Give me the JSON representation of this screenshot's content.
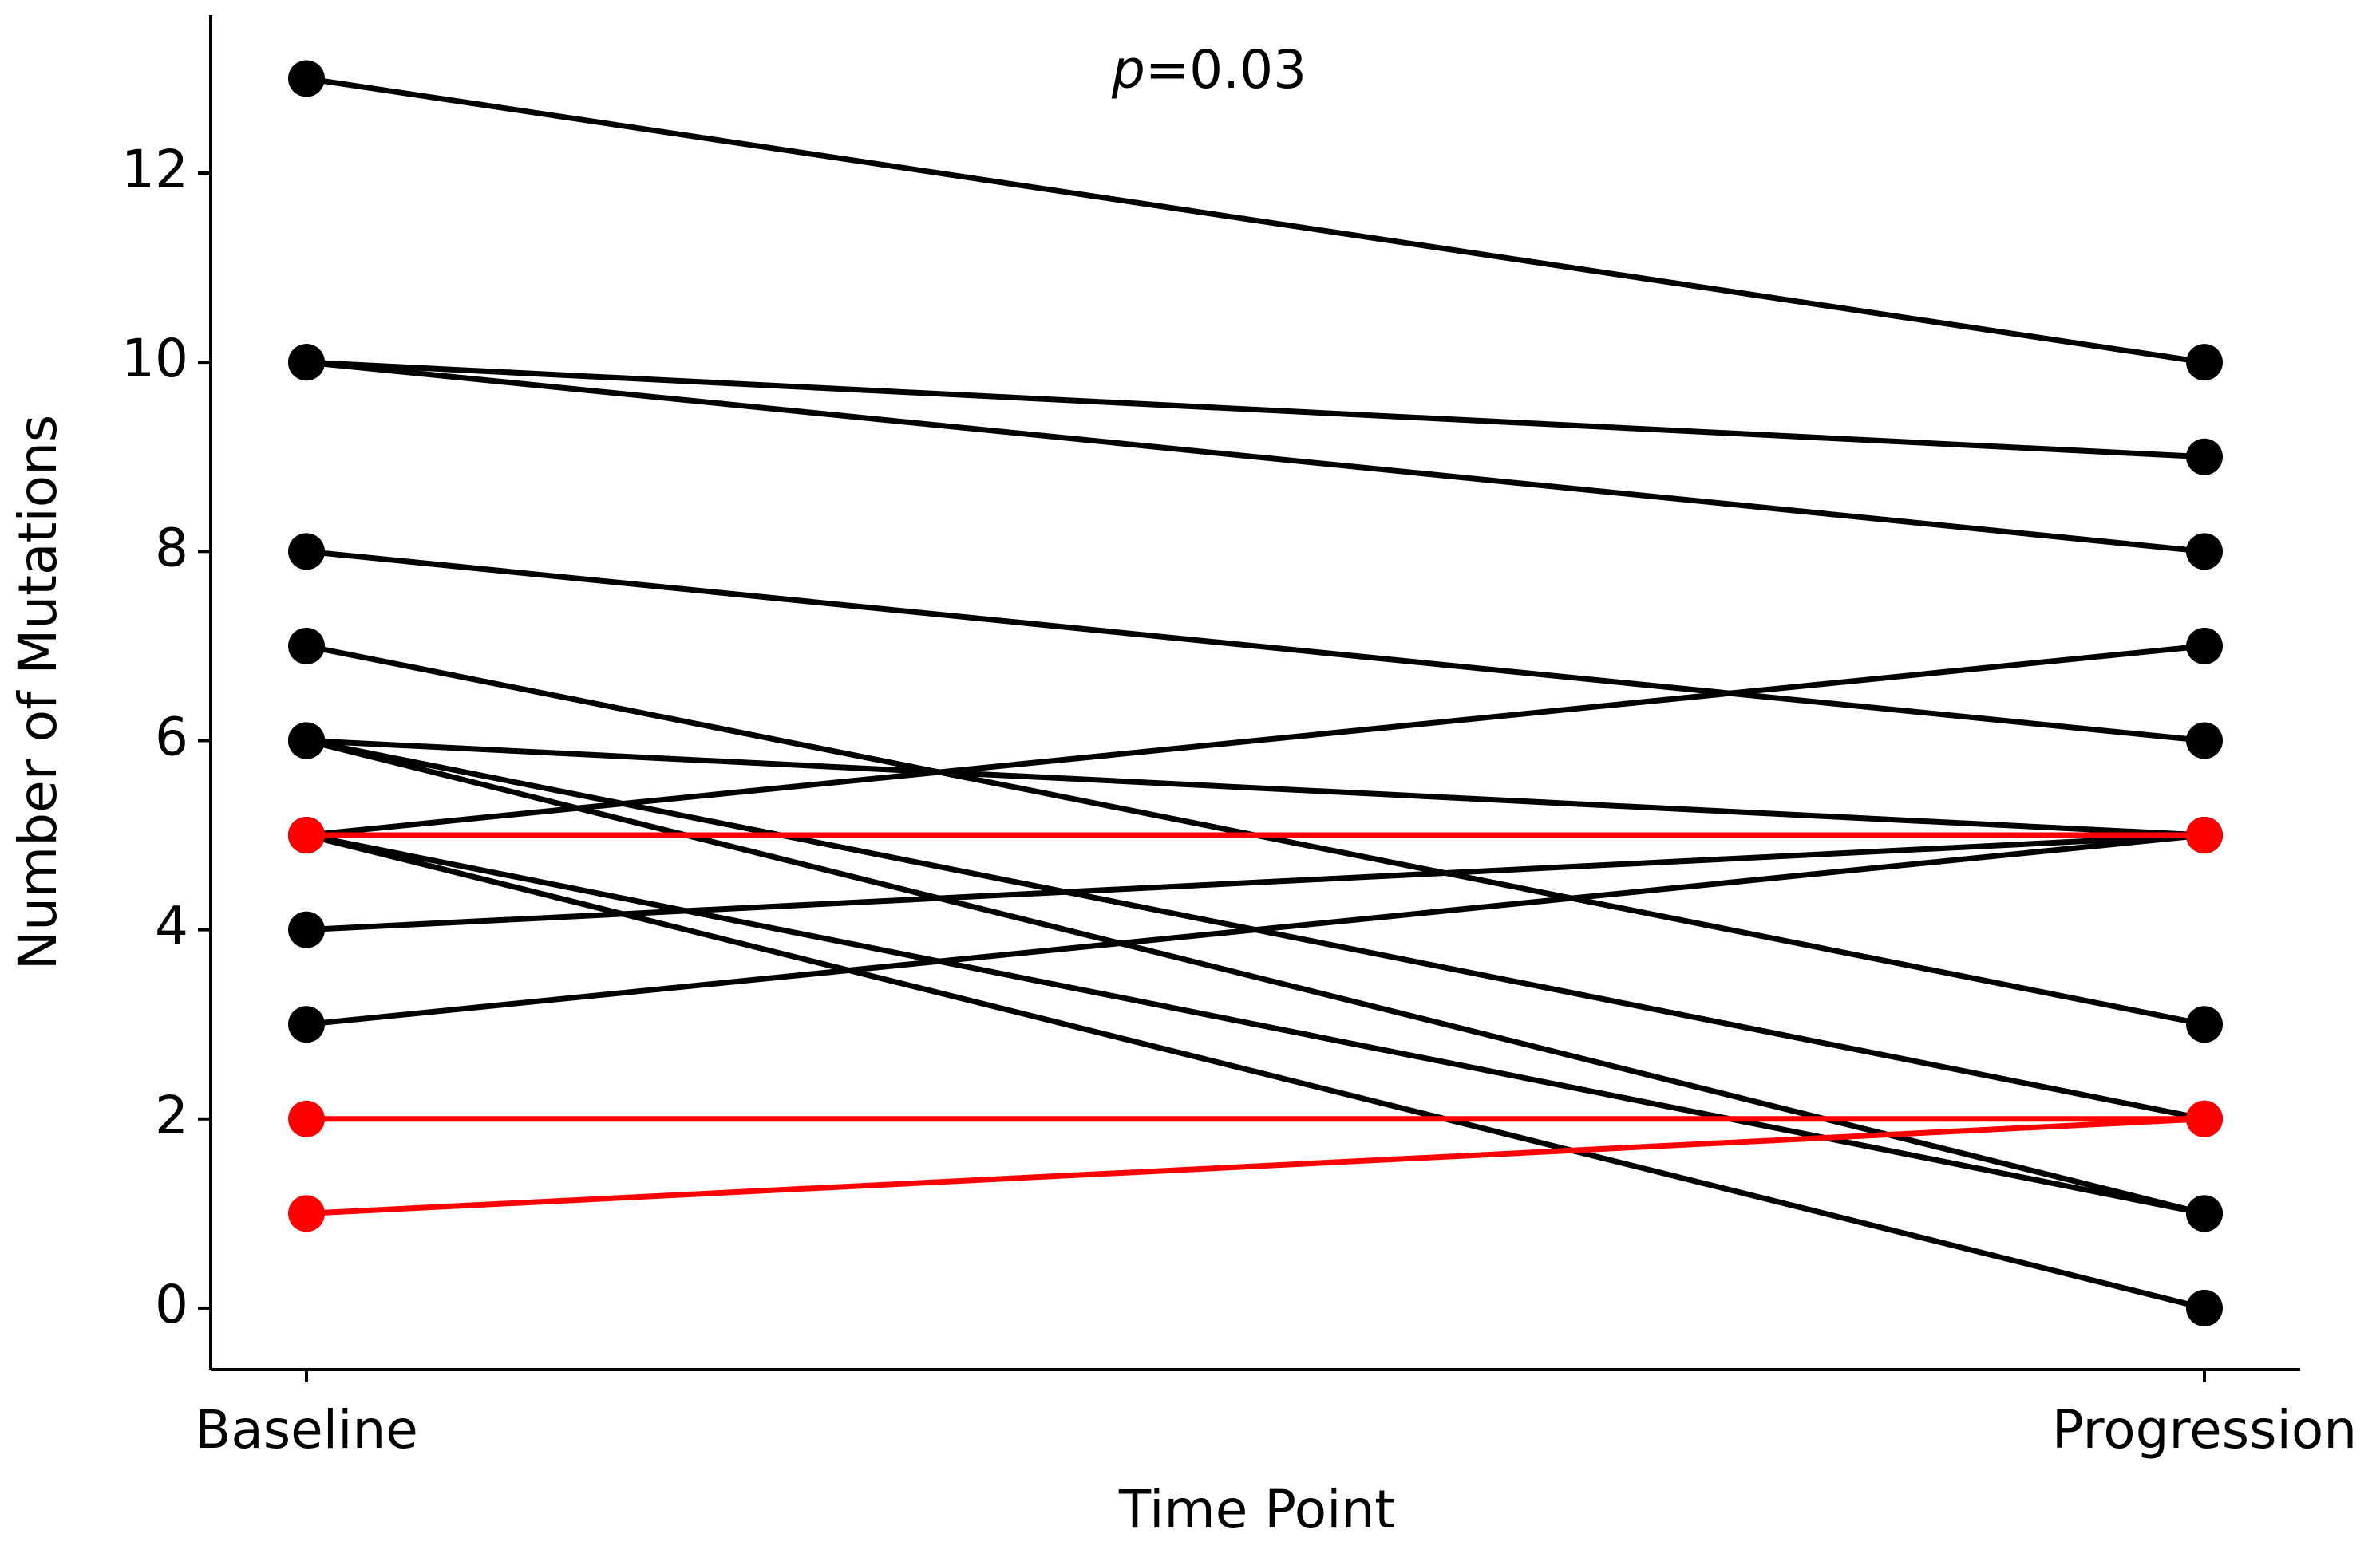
{
  "chart_data": {
    "type": "line",
    "annotation": "p=0.03",
    "x_label": "Time Point",
    "y_label": "Number of Mutations",
    "categories": [
      "Baseline",
      "Progression"
    ],
    "ylim": [
      -0.65,
      13.67
    ],
    "yticks": [
      0,
      2,
      4,
      6,
      8,
      10,
      12
    ],
    "series": [
      {
        "color": "#000000",
        "values": [
          13,
          10
        ]
      },
      {
        "color": "#000000",
        "values": [
          10,
          9
        ]
      },
      {
        "color": "#000000",
        "values": [
          10,
          8
        ]
      },
      {
        "color": "#000000",
        "values": [
          8,
          6
        ]
      },
      {
        "color": "#000000",
        "values": [
          7,
          3
        ]
      },
      {
        "color": "#000000",
        "values": [
          6,
          5
        ]
      },
      {
        "color": "#000000",
        "values": [
          6,
          2
        ]
      },
      {
        "color": "#000000",
        "values": [
          6,
          1
        ]
      },
      {
        "color": "#000000",
        "values": [
          5,
          7
        ]
      },
      {
        "color": "#000000",
        "values": [
          5,
          1
        ]
      },
      {
        "color": "#000000",
        "values": [
          5,
          0
        ]
      },
      {
        "color": "#000000",
        "values": [
          4,
          5
        ]
      },
      {
        "color": "#000000",
        "values": [
          3,
          5
        ]
      },
      {
        "color": "#ff0000",
        "values": [
          5,
          5
        ]
      },
      {
        "color": "#ff0000",
        "values": [
          2,
          2
        ]
      },
      {
        "color": "#ff0000",
        "values": [
          1,
          2
        ]
      }
    ]
  }
}
